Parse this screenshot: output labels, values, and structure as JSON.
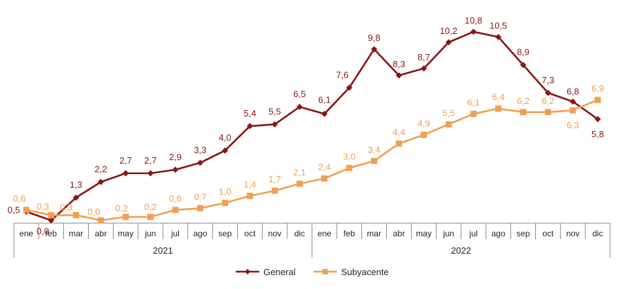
{
  "chart_data": {
    "type": "line",
    "title": "",
    "xlabel": "",
    "ylabel": "",
    "ylim": [
      0,
      11
    ],
    "grid": false,
    "legend": "bottom",
    "categories": [
      "ene",
      "feb",
      "mar",
      "abr",
      "may",
      "jun",
      "jul",
      "ago",
      "sep",
      "oct",
      "nov",
      "dic",
      "ene",
      "feb",
      "mar",
      "abr",
      "may",
      "jun",
      "jul",
      "ago",
      "sep",
      "oct",
      "nov",
      "dic"
    ],
    "groups": [
      {
        "label": "2021",
        "start": 0,
        "end": 11
      },
      {
        "label": "2022",
        "start": 12,
        "end": 23
      }
    ],
    "series": [
      {
        "name": "General",
        "color": "#8B1414",
        "marker": "diamond",
        "values": [
          0.5,
          0.0,
          1.3,
          2.2,
          2.7,
          2.7,
          2.9,
          3.3,
          4.0,
          5.4,
          5.5,
          6.5,
          6.1,
          7.6,
          9.8,
          8.3,
          8.7,
          10.2,
          10.8,
          10.5,
          8.9,
          7.3,
          6.8,
          5.8
        ],
        "labels": [
          "0,5",
          "0,0",
          "1,3",
          "2,2",
          "2,7",
          "2,7",
          "2,9",
          "3,3",
          "4,0",
          "5,4",
          "5,5",
          "6,5",
          "6,1",
          "7,6",
          "9,8",
          "8,3",
          "8,7",
          "10,2",
          "10,8",
          "10,5",
          "8,9",
          "7,3",
          "6,8",
          "5,8"
        ]
      },
      {
        "name": "Subyacente",
        "color": "#F0A050",
        "marker": "square",
        "values": [
          0.6,
          0.3,
          0.3,
          0.0,
          0.2,
          0.2,
          0.6,
          0.7,
          1.0,
          1.4,
          1.7,
          2.1,
          2.4,
          3.0,
          3.4,
          4.4,
          4.9,
          5.5,
          6.1,
          6.4,
          6.2,
          6.2,
          6.3,
          6.9
        ],
        "labels": [
          "0,6",
          "0,3",
          "0,3",
          "0,0",
          "0,2",
          "0,2",
          "0,6",
          "0,7",
          "1,0",
          "1,4",
          "1,7",
          "2,1",
          "2,4",
          "3,0",
          "3,4",
          "4,4",
          "4,9",
          "5,5",
          "6,1",
          "6,4",
          "6,2",
          "6,2",
          "6,3",
          "6,9"
        ]
      }
    ]
  }
}
